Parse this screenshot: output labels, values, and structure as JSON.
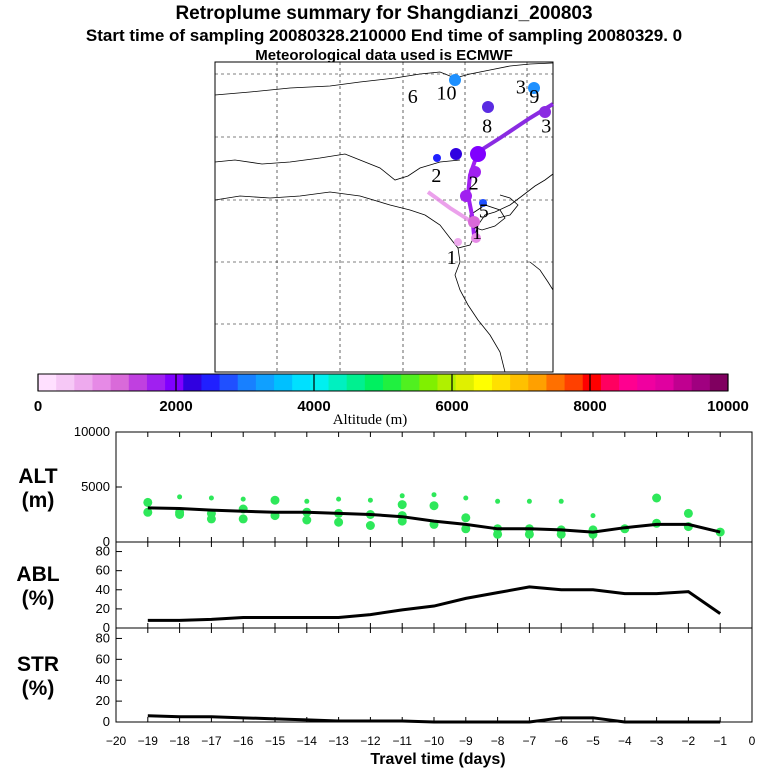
{
  "header": {
    "title": "Retroplume summary for Shangdianzi_200803",
    "sampling": "Start time of sampling 20080328.210000     End time of sampling 20080329.     0",
    "met": "Meteorological data used is ECMWF"
  },
  "map": {
    "day_labels": [
      {
        "text": "6",
        "lon": 0.585,
        "lat": 0.08
      },
      {
        "text": "10",
        "lon": 0.685,
        "lat": 0.07
      },
      {
        "text": "3",
        "lon": 0.905,
        "lat": 0.05
      },
      {
        "text": "9",
        "lon": 0.945,
        "lat": 0.08
      },
      {
        "text": "8",
        "lon": 0.805,
        "lat": 0.175
      },
      {
        "text": "3",
        "lon": 0.98,
        "lat": 0.175
      },
      {
        "text": "2",
        "lon": 0.655,
        "lat": 0.335
      },
      {
        "text": "2",
        "lon": 0.765,
        "lat": 0.36
      },
      {
        "text": "5",
        "lon": 0.795,
        "lat": 0.45
      },
      {
        "text": "1",
        "lon": 0.775,
        "lat": 0.52
      },
      {
        "text": "1",
        "lon": 0.7,
        "lat": 0.6
      }
    ]
  },
  "colorbar": {
    "ticks": [
      "0",
      "2000",
      "4000",
      "6000",
      "8000",
      "10000"
    ],
    "label": "Altitude (m)",
    "colors": [
      "#ffe0ff",
      "#f6c8f6",
      "#eeaaee",
      "#e68ae6",
      "#d96ad9",
      "#c040e0",
      "#a020f0",
      "#8000ff",
      "#3000e0",
      "#2020ff",
      "#2050ff",
      "#1880ff",
      "#10a0ff",
      "#00c0ff",
      "#00e0ff",
      "#00f0f0",
      "#00f0c0",
      "#00f090",
      "#00f060",
      "#20f040",
      "#50f020",
      "#80f000",
      "#b0f000",
      "#e0f000",
      "#ffff00",
      "#ffe000",
      "#ffc000",
      "#ffa000",
      "#ff7000",
      "#ff4000",
      "#ff0000",
      "#ff0060",
      "#ff0090",
      "#f000a0",
      "#e000a0",
      "#c00090",
      "#a00080",
      "#800060"
    ]
  },
  "chart_data": [
    {
      "type": "line",
      "name": "ALT",
      "ylabel": "ALT\n(m)",
      "ylabel_line1": "ALT",
      "ylabel_line2": "(m)",
      "ylim": [
        0,
        10000
      ],
      "yticks": [
        "0",
        "5000",
        "10000"
      ],
      "x": [
        -19,
        -18,
        -17,
        -16,
        -15,
        -14,
        -13,
        -12,
        -11,
        -10,
        -9,
        -8,
        -7,
        -6,
        -5,
        -4,
        -3,
        -2,
        -1
      ],
      "values": [
        3100,
        3050,
        2900,
        2800,
        2700,
        2700,
        2600,
        2500,
        2300,
        1900,
        1600,
        1200,
        1200,
        1100,
        900,
        1300,
        1600,
        1600,
        900
      ],
      "scatter": [
        {
          "x": -19,
          "y": [
            3600,
            2700
          ]
        },
        {
          "x": -18,
          "y": [
            4100,
            2700,
            2500
          ]
        },
        {
          "x": -17,
          "y": [
            4000,
            2600,
            2100
          ]
        },
        {
          "x": -16,
          "y": [
            3900,
            3000,
            2100
          ]
        },
        {
          "x": -15,
          "y": [
            3800,
            2400
          ]
        },
        {
          "x": -14,
          "y": [
            3700,
            2700,
            2000
          ]
        },
        {
          "x": -13,
          "y": [
            3900,
            2600,
            1800
          ]
        },
        {
          "x": -12,
          "y": [
            3800,
            2500,
            1500
          ]
        },
        {
          "x": -11,
          "y": [
            4200,
            3400,
            2400,
            1900
          ]
        },
        {
          "x": -10,
          "y": [
            4300,
            3300,
            1600
          ]
        },
        {
          "x": -9,
          "y": [
            4000,
            2200,
            1200
          ]
        },
        {
          "x": -8,
          "y": [
            3700,
            1200,
            700
          ]
        },
        {
          "x": -7,
          "y": [
            3700,
            1200,
            700
          ]
        },
        {
          "x": -6,
          "y": [
            3700,
            1100,
            700
          ]
        },
        {
          "x": -5,
          "y": [
            2400,
            1100,
            700
          ]
        },
        {
          "x": -4,
          "y": [
            1200
          ]
        },
        {
          "x": -3,
          "y": [
            4000,
            1700
          ]
        },
        {
          "x": -2,
          "y": [
            2600,
            1400
          ]
        },
        {
          "x": -1,
          "y": [
            900
          ]
        }
      ]
    },
    {
      "type": "line",
      "name": "ABL",
      "ylabel_line1": "ABL",
      "ylabel_line2": "(%)",
      "ylim": [
        0,
        90
      ],
      "yticks": [
        "0",
        "20",
        "40",
        "60",
        "80"
      ],
      "x": [
        -19,
        -18,
        -17,
        -16,
        -15,
        -14,
        -13,
        -12,
        -11,
        -10,
        -9,
        -8,
        -7,
        -6,
        -5,
        -4,
        -3,
        -2,
        -1
      ],
      "values": [
        8,
        8,
        9,
        11,
        11,
        11,
        11,
        14,
        19,
        23,
        31,
        37,
        43,
        40,
        40,
        36,
        36,
        38,
        15
      ]
    },
    {
      "type": "line",
      "name": "STR",
      "ylabel_line1": "STR",
      "ylabel_line2": "(%)",
      "ylim": [
        0,
        90
      ],
      "yticks": [
        "0",
        "20",
        "40",
        "60",
        "80"
      ],
      "x": [
        -19,
        -18,
        -17,
        -16,
        -15,
        -14,
        -13,
        -12,
        -11,
        -10,
        -9,
        -8,
        -7,
        -6,
        -5,
        -4,
        -3,
        -2,
        -1
      ],
      "values": [
        6,
        5,
        5,
        4,
        3,
        2,
        1,
        1,
        1,
        0,
        0,
        0,
        0,
        4,
        4,
        0,
        0,
        0,
        0
      ],
      "xlabel": "Travel time (days)",
      "xlim": [
        -20,
        0
      ],
      "xticks": [
        "−20",
        "−19",
        "−18",
        "−17",
        "−16",
        "−15",
        "−14",
        "−13",
        "−12",
        "−11",
        "−10",
        "−9",
        "−8",
        "−7",
        "−6",
        "−5",
        "−4",
        "−3",
        "−2",
        "−1",
        "0"
      ]
    }
  ]
}
